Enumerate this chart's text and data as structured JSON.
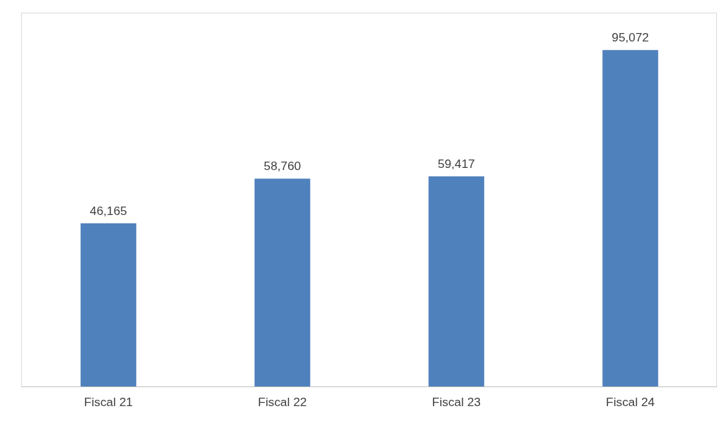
{
  "chart_data": {
    "type": "bar",
    "categories": [
      "Fiscal 21",
      "Fiscal 22",
      "Fiscal 23",
      "Fiscal 24"
    ],
    "values": [
      46165,
      58760,
      59417,
      95072
    ],
    "color": "#4f81bd",
    "value_labels": [
      "46,165",
      "58,760",
      "59,417",
      "95,072"
    ]
  }
}
